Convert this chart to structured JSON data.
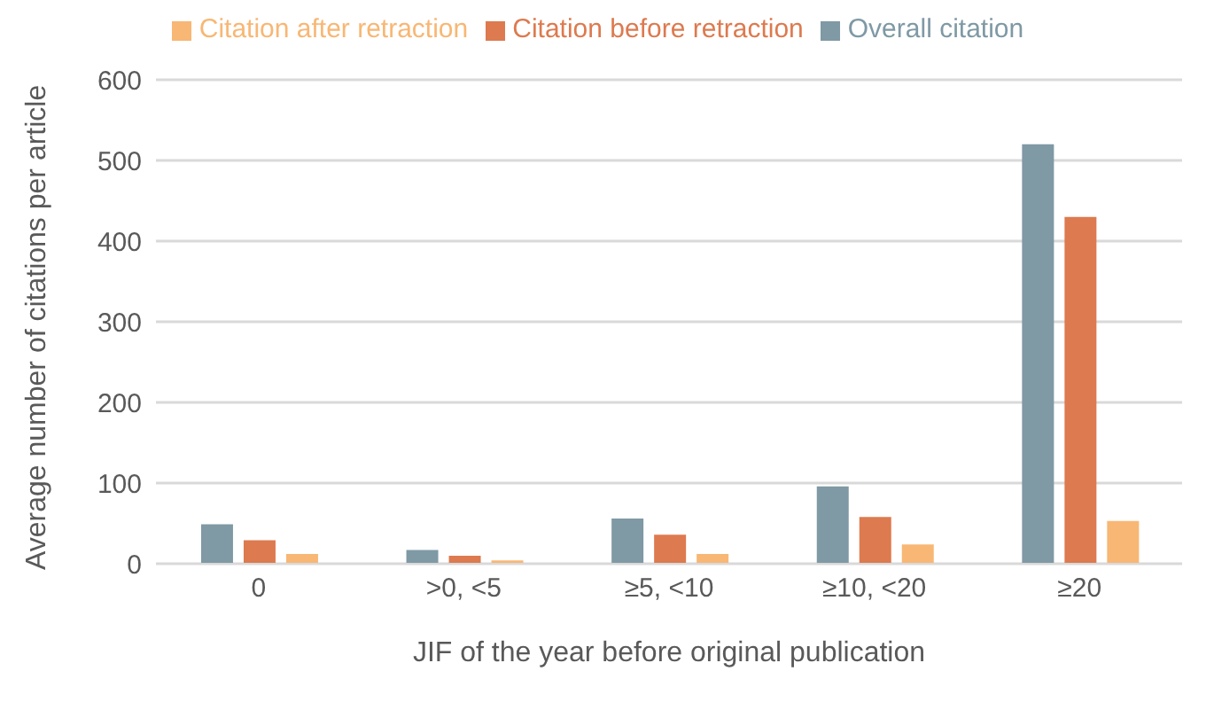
{
  "chart_data": {
    "type": "bar",
    "xlabel": "JIF of the year before original publication",
    "ylabel": "Average number of citations per article",
    "categories": [
      "0",
      ">0, <5",
      "≥5, <10",
      "≥10, <20",
      "≥20"
    ],
    "series": [
      {
        "name": "Overall citation",
        "color": "#7f99a5",
        "values": [
          49,
          17,
          56,
          96,
          520
        ]
      },
      {
        "name": "Citation before retraction",
        "color": "#dd7a4f",
        "values": [
          29,
          10,
          36,
          58,
          430
        ]
      },
      {
        "name": "Citation after retraction",
        "color": "#f8b774",
        "values": [
          12,
          4,
          12,
          24,
          53
        ]
      }
    ],
    "ylim": [
      0,
      600
    ],
    "yticks": [
      0,
      100,
      200,
      300,
      400,
      500,
      600
    ],
    "grid": "y",
    "legend": "top"
  }
}
